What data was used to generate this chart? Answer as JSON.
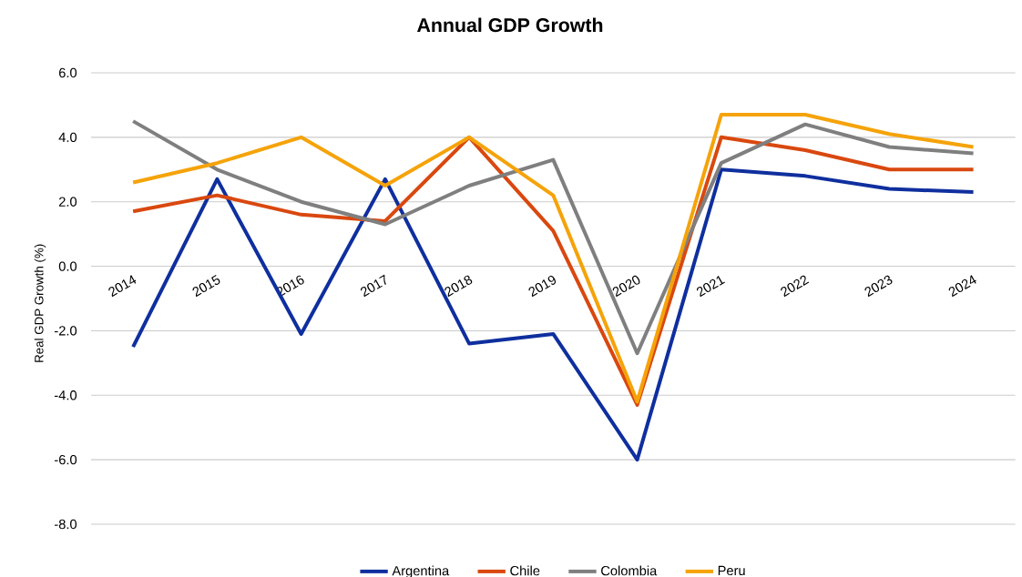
{
  "chart_data": {
    "type": "line",
    "title": "Annual GDP Growth",
    "ylabel": "Real GDP Growth (%)",
    "categories": [
      "2014",
      "2015",
      "2016",
      "2017",
      "2018",
      "2019",
      "2020",
      "2021",
      "2022",
      "2023",
      "2024"
    ],
    "series": [
      {
        "name": "Argentina",
        "color": "#0f2f9e",
        "values": [
          -2.5,
          2.7,
          -2.1,
          2.7,
          -2.4,
          -2.1,
          -6.0,
          3.0,
          2.8,
          2.4,
          2.3
        ]
      },
      {
        "name": "Chile",
        "color": "#d9480f",
        "values": [
          1.7,
          2.2,
          1.6,
          1.4,
          4.0,
          1.1,
          -4.3,
          4.0,
          3.6,
          3.0,
          3.0
        ]
      },
      {
        "name": "Colombia",
        "color": "#7f7f7f",
        "values": [
          4.5,
          3.0,
          2.0,
          1.3,
          2.5,
          3.3,
          -2.7,
          3.2,
          4.4,
          3.7,
          3.5
        ]
      },
      {
        "name": "Peru",
        "color": "#f5a30a",
        "values": [
          2.6,
          3.2,
          4.0,
          2.5,
          4.0,
          2.2,
          -4.2,
          4.7,
          4.7,
          4.1,
          3.7
        ]
      }
    ],
    "ylim": [
      -8,
      6
    ],
    "yticks": [
      {
        "value": -8,
        "label": "-8.0"
      },
      {
        "value": -6,
        "label": "-6.0"
      },
      {
        "value": -4,
        "label": "-4.0"
      },
      {
        "value": -2,
        "label": "-2.0"
      },
      {
        "value": 0,
        "label": "0.0"
      },
      {
        "value": 2,
        "label": "2.0"
      },
      {
        "value": 4,
        "label": "4.0"
      },
      {
        "value": 6,
        "label": "6.0"
      }
    ],
    "grid": "y",
    "legend": "bottom",
    "marker": "none",
    "line_style": "solid"
  }
}
